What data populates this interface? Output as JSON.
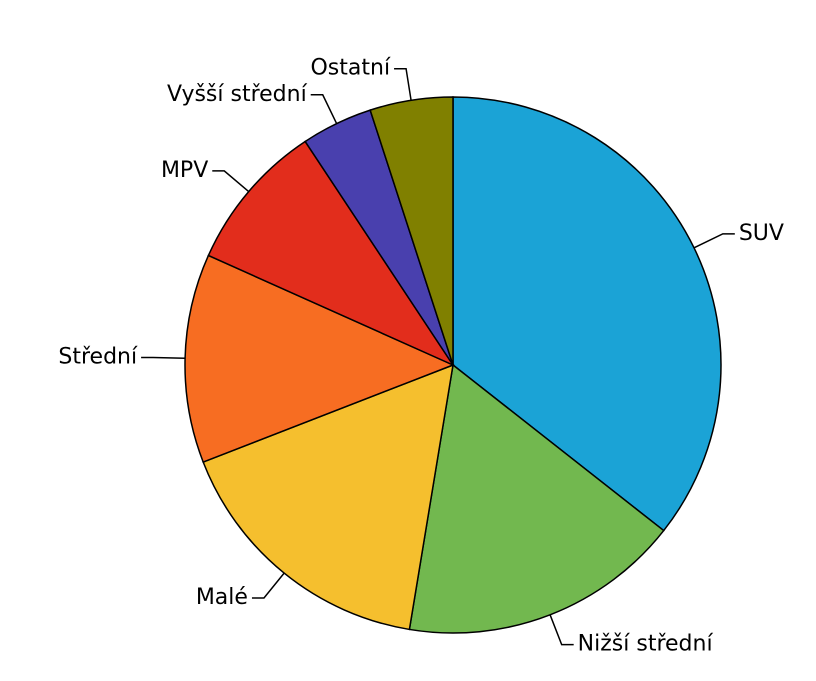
{
  "chart_data": {
    "type": "pie",
    "categories": [
      "SUV",
      "Nižší střední",
      "Malé",
      "Střední",
      "MPV",
      "Vyšší střední",
      "Ostatní"
    ],
    "values": [
      35.6,
      17,
      16.5,
      12.6,
      9,
      4.3,
      5
    ],
    "colors": [
      "#1ba3d6",
      "#72b84f",
      "#f5bf2e",
      "#f76d22",
      "#e22d1c",
      "#4940ae",
      "#808000"
    ]
  }
}
